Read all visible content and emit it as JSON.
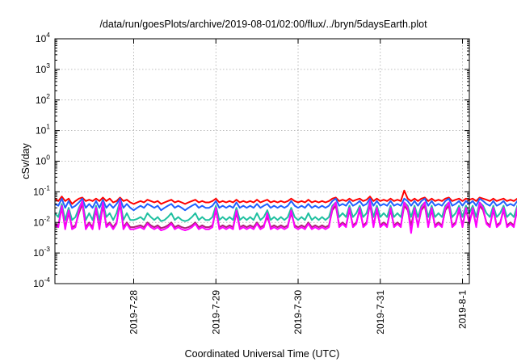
{
  "chart_data": {
    "type": "line",
    "title": "/data/run/goesPlots/archive/2019-08-01/02:00/flux/../bryn/5daysEarth.plot",
    "xlabel": "Coordinated Universal Time (UTC)",
    "ylabel": "cSv/day",
    "yscale": "log",
    "ylim": [
      0.0001,
      10000
    ],
    "y_ticks": [
      {
        "base": "10",
        "exp": "-4",
        "value": 0.0001
      },
      {
        "base": "10",
        "exp": "-3",
        "value": 0.001
      },
      {
        "base": "10",
        "exp": "-2",
        "value": 0.01
      },
      {
        "base": "10",
        "exp": "-1",
        "value": 0.1
      },
      {
        "base": "10",
        "exp": "0",
        "value": 1
      },
      {
        "base": "10",
        "exp": "1",
        "value": 10
      },
      {
        "base": "10",
        "exp": "2",
        "value": 100
      },
      {
        "base": "10",
        "exp": "3",
        "value": 1000
      },
      {
        "base": "10",
        "exp": "4",
        "value": 10000
      }
    ],
    "xlim": [
      "2019-07-27T01:00",
      "2019-08-01T02:00"
    ],
    "x_ticks": [
      {
        "label": "2019-7-28",
        "value": "2019-07-28T00:00"
      },
      {
        "label": "2019-7-29",
        "value": "2019-07-29T00:00"
      },
      {
        "label": "2019-7-30",
        "value": "2019-07-30T00:00"
      },
      {
        "label": "2019-7-31",
        "value": "2019-07-31T00:00"
      },
      {
        "label": "2019-8-1",
        "value": "2019-08-01T00:00"
      }
    ],
    "grid": true,
    "legend": "none",
    "x_start": "2019-07-27T01:00",
    "x_step_hours": 1,
    "series": [
      {
        "color": "#ff0000",
        "values": [
          0.06,
          0.05,
          0.07,
          0.05,
          0.06,
          0.04,
          0.05,
          0.06,
          0.065,
          0.05,
          0.055,
          0.05,
          0.06,
          0.05,
          0.065,
          0.05,
          0.06,
          0.045,
          0.05,
          0.065,
          0.05,
          0.055,
          0.045,
          0.04,
          0.045,
          0.05,
          0.045,
          0.055,
          0.05,
          0.045,
          0.05,
          0.04,
          0.045,
          0.05,
          0.055,
          0.045,
          0.05,
          0.045,
          0.04,
          0.045,
          0.05,
          0.055,
          0.045,
          0.05,
          0.045,
          0.045,
          0.05,
          0.06,
          0.045,
          0.05,
          0.045,
          0.05,
          0.045,
          0.055,
          0.045,
          0.05,
          0.045,
          0.05,
          0.045,
          0.055,
          0.045,
          0.05,
          0.055,
          0.045,
          0.05,
          0.045,
          0.05,
          0.045,
          0.05,
          0.06,
          0.05,
          0.045,
          0.05,
          0.045,
          0.055,
          0.045,
          0.05,
          0.045,
          0.05,
          0.045,
          0.05,
          0.06,
          0.065,
          0.05,
          0.055,
          0.05,
          0.06,
          0.05,
          0.055,
          0.06,
          0.05,
          0.055,
          0.07,
          0.05,
          0.06,
          0.05,
          0.055,
          0.05,
          0.06,
          0.05,
          0.055,
          0.05,
          0.11,
          0.06,
          0.05,
          0.06,
          0.05,
          0.06,
          0.065,
          0.05,
          0.06,
          0.05,
          0.055,
          0.05,
          0.06,
          0.065,
          0.05,
          0.055,
          0.06,
          0.05,
          0.06,
          0.055,
          0.06,
          0.05,
          0.065,
          0.06,
          0.055,
          0.05,
          0.06,
          0.05,
          0.055,
          0.06,
          0.05,
          0.055,
          0.05,
          0.06,
          0.05,
          0.045,
          0.05,
          0.045,
          0.05,
          0.045,
          0.05,
          0.045,
          0.05,
          0.045,
          0.05,
          0.045,
          0.05,
          0.045,
          0.05,
          0.045,
          0.05,
          0.045,
          0.05,
          0.045,
          0.05,
          0.045,
          0.05,
          0.045,
          0.05,
          0.045,
          0.05,
          0.045,
          0.05,
          0.055,
          0.06,
          0.07,
          0.08,
          0.06,
          0.07,
          0.065,
          0.075,
          0.06,
          0.07,
          0.06,
          0.075,
          0.065,
          0.06,
          0.07
        ]
      },
      {
        "color": "#2060ff",
        "values": [
          0.04,
          0.035,
          0.06,
          0.03,
          0.05,
          0.03,
          0.035,
          0.045,
          0.06,
          0.03,
          0.04,
          0.03,
          0.05,
          0.03,
          0.055,
          0.03,
          0.04,
          0.03,
          0.04,
          0.06,
          0.03,
          0.04,
          0.03,
          0.025,
          0.03,
          0.035,
          0.03,
          0.04,
          0.035,
          0.03,
          0.035,
          0.025,
          0.03,
          0.035,
          0.04,
          0.03,
          0.035,
          0.03,
          0.025,
          0.03,
          0.035,
          0.04,
          0.03,
          0.035,
          0.03,
          0.03,
          0.035,
          0.05,
          0.03,
          0.035,
          0.03,
          0.035,
          0.03,
          0.045,
          0.03,
          0.035,
          0.03,
          0.035,
          0.03,
          0.04,
          0.03,
          0.035,
          0.04,
          0.03,
          0.035,
          0.03,
          0.035,
          0.03,
          0.035,
          0.05,
          0.035,
          0.03,
          0.035,
          0.03,
          0.04,
          0.03,
          0.035,
          0.03,
          0.035,
          0.03,
          0.035,
          0.05,
          0.06,
          0.035,
          0.04,
          0.035,
          0.05,
          0.035,
          0.04,
          0.05,
          0.035,
          0.04,
          0.06,
          0.035,
          0.05,
          0.035,
          0.04,
          0.035,
          0.05,
          0.035,
          0.04,
          0.035,
          0.06,
          0.05,
          0.035,
          0.05,
          0.035,
          0.05,
          0.06,
          0.035,
          0.05,
          0.035,
          0.04,
          0.035,
          0.05,
          0.06,
          0.035,
          0.04,
          0.05,
          0.035,
          0.05,
          0.04,
          0.05,
          0.035,
          0.06,
          0.05,
          0.04,
          0.035,
          0.05,
          0.035,
          0.04,
          0.05,
          0.035,
          0.04,
          0.035,
          0.05,
          0.035,
          0.03,
          0.035,
          0.03,
          0.035,
          0.03,
          0.035,
          0.03,
          0.035,
          0.03,
          0.035,
          0.03,
          0.035,
          0.03,
          0.035,
          0.03,
          0.035,
          0.03,
          0.035,
          0.03,
          0.035,
          0.03,
          0.035,
          0.03,
          0.035,
          0.03,
          0.035,
          0.03,
          0.035,
          0.04,
          0.05,
          0.06,
          0.07,
          0.05,
          0.065,
          0.055,
          0.07,
          0.05,
          0.065,
          0.05,
          0.07,
          0.06,
          0.05,
          0.065
        ]
      },
      {
        "color": "#20c0a0",
        "values": [
          0.02,
          0.015,
          0.04,
          0.012,
          0.03,
          0.012,
          0.015,
          0.03,
          0.05,
          0.012,
          0.02,
          0.012,
          0.035,
          0.012,
          0.045,
          0.015,
          0.02,
          0.012,
          0.02,
          0.05,
          0.012,
          0.02,
          0.012,
          0.012,
          0.013,
          0.015,
          0.012,
          0.02,
          0.015,
          0.012,
          0.015,
          0.011,
          0.012,
          0.015,
          0.02,
          0.012,
          0.015,
          0.012,
          0.011,
          0.012,
          0.015,
          0.02,
          0.012,
          0.015,
          0.012,
          0.012,
          0.015,
          0.035,
          0.012,
          0.015,
          0.012,
          0.015,
          0.012,
          0.03,
          0.012,
          0.015,
          0.012,
          0.015,
          0.012,
          0.02,
          0.012,
          0.015,
          0.025,
          0.012,
          0.015,
          0.012,
          0.015,
          0.012,
          0.015,
          0.03,
          0.015,
          0.012,
          0.015,
          0.012,
          0.02,
          0.012,
          0.015,
          0.012,
          0.015,
          0.012,
          0.015,
          0.035,
          0.045,
          0.015,
          0.02,
          0.015,
          0.035,
          0.015,
          0.02,
          0.035,
          0.015,
          0.02,
          0.05,
          0.015,
          0.035,
          0.015,
          0.02,
          0.015,
          0.035,
          0.015,
          0.02,
          0.015,
          0.045,
          0.035,
          0.015,
          0.035,
          0.015,
          0.035,
          0.045,
          0.015,
          0.035,
          0.015,
          0.02,
          0.015,
          0.035,
          0.045,
          0.015,
          0.02,
          0.035,
          0.015,
          0.035,
          0.02,
          0.035,
          0.015,
          0.045,
          0.035,
          0.02,
          0.015,
          0.035,
          0.015,
          0.02,
          0.035,
          0.015,
          0.02,
          0.015,
          0.035,
          0.015,
          0.012,
          0.015,
          0.012,
          0.015,
          0.012,
          0.015,
          0.012,
          0.015,
          0.012,
          0.015,
          0.012,
          0.015,
          0.012,
          0.015,
          0.012,
          0.015,
          0.012,
          0.015,
          0.012,
          0.015,
          0.012,
          0.015,
          0.012,
          0.015,
          0.012,
          0.015,
          0.012,
          0.015,
          0.02,
          0.035,
          0.045,
          0.06,
          0.035,
          0.05,
          0.04,
          0.06,
          0.035,
          0.05,
          0.035,
          0.06,
          0.045,
          0.035,
          0.05
        ]
      },
      {
        "color": "#b0207a",
        "values": [
          0.009,
          0.008,
          0.03,
          0.007,
          0.02,
          0.007,
          0.008,
          0.02,
          0.04,
          0.007,
          0.01,
          0.007,
          0.025,
          0.007,
          0.035,
          0.008,
          0.01,
          0.007,
          0.01,
          0.04,
          0.007,
          0.01,
          0.007,
          0.007,
          0.0075,
          0.008,
          0.007,
          0.01,
          0.008,
          0.007,
          0.008,
          0.0065,
          0.007,
          0.008,
          0.01,
          0.007,
          0.008,
          0.007,
          0.0065,
          0.007,
          0.008,
          0.01,
          0.007,
          0.008,
          0.007,
          0.007,
          0.008,
          0.025,
          0.007,
          0.008,
          0.007,
          0.008,
          0.007,
          0.02,
          0.007,
          0.008,
          0.007,
          0.008,
          0.007,
          0.01,
          0.007,
          0.008,
          0.015,
          0.007,
          0.008,
          0.007,
          0.008,
          0.007,
          0.008,
          0.02,
          0.008,
          0.007,
          0.008,
          0.007,
          0.01,
          0.007,
          0.008,
          0.007,
          0.008,
          0.007,
          0.008,
          0.025,
          0.035,
          0.008,
          0.01,
          0.008,
          0.025,
          0.008,
          0.01,
          0.025,
          0.008,
          0.01,
          0.04,
          0.008,
          0.025,
          0.008,
          0.01,
          0.008,
          0.025,
          0.008,
          0.01,
          0.008,
          0.035,
          0.025,
          0.008,
          0.025,
          0.008,
          0.025,
          0.035,
          0.008,
          0.025,
          0.008,
          0.01,
          0.008,
          0.025,
          0.035,
          0.008,
          0.01,
          0.025,
          0.008,
          0.025,
          0.01,
          0.025,
          0.008,
          0.035,
          0.025,
          0.01,
          0.008,
          0.025,
          0.008,
          0.01,
          0.025,
          0.008,
          0.01,
          0.008,
          0.025,
          0.008,
          0.007,
          0.008,
          0.007,
          0.008,
          0.007,
          0.008,
          0.007,
          0.008,
          0.007,
          0.008,
          0.007,
          0.008,
          0.007,
          0.008,
          0.007,
          0.008,
          0.007,
          0.008,
          0.007,
          0.008,
          0.007,
          0.008,
          0.007,
          0.008,
          0.007,
          0.008,
          0.007,
          0.008,
          0.01,
          0.025,
          0.035,
          0.05,
          0.025,
          0.04,
          0.03,
          0.05,
          0.025,
          0.04,
          0.025,
          0.05,
          0.035,
          0.025,
          0.04
        ]
      },
      {
        "color": "#ff00ff",
        "values": [
          0.008,
          0.007,
          0.035,
          0.006,
          0.025,
          0.006,
          0.007,
          0.025,
          0.05,
          0.006,
          0.009,
          0.006,
          0.03,
          0.006,
          0.045,
          0.007,
          0.009,
          0.006,
          0.009,
          0.05,
          0.006,
          0.009,
          0.006,
          0.006,
          0.0065,
          0.007,
          0.006,
          0.009,
          0.007,
          0.006,
          0.007,
          0.0055,
          0.006,
          0.007,
          0.009,
          0.006,
          0.007,
          0.006,
          0.0055,
          0.006,
          0.007,
          0.009,
          0.006,
          0.007,
          0.006,
          0.006,
          0.007,
          0.03,
          0.006,
          0.007,
          0.006,
          0.007,
          0.006,
          0.025,
          0.006,
          0.007,
          0.006,
          0.007,
          0.006,
          0.009,
          0.006,
          0.007,
          0.02,
          0.006,
          0.007,
          0.006,
          0.007,
          0.006,
          0.007,
          0.025,
          0.007,
          0.006,
          0.007,
          0.006,
          0.009,
          0.006,
          0.007,
          0.006,
          0.007,
          0.006,
          0.007,
          0.03,
          0.045,
          0.007,
          0.009,
          0.007,
          0.03,
          0.007,
          0.009,
          0.03,
          0.007,
          0.009,
          0.05,
          0.007,
          0.03,
          0.007,
          0.009,
          0.007,
          0.03,
          0.007,
          0.009,
          0.007,
          0.045,
          0.03,
          0.0045,
          0.03,
          0.007,
          0.03,
          0.045,
          0.007,
          0.03,
          0.007,
          0.009,
          0.007,
          0.03,
          0.045,
          0.007,
          0.009,
          0.03,
          0.007,
          0.03,
          0.009,
          0.03,
          0.007,
          0.045,
          0.03,
          0.009,
          0.007,
          0.03,
          0.007,
          0.009,
          0.03,
          0.007,
          0.009,
          0.007,
          0.03,
          0.007,
          0.006,
          0.007,
          0.006,
          0.007,
          0.006,
          0.007,
          0.006,
          0.007,
          0.006,
          0.007,
          0.006,
          0.007,
          0.006,
          0.007,
          0.006,
          0.007,
          0.006,
          0.007,
          0.006,
          0.007,
          0.006,
          0.007,
          0.006,
          0.007,
          0.006,
          0.007,
          0.006,
          0.007,
          0.009,
          0.03,
          0.045,
          0.06,
          0.03,
          0.05,
          0.035,
          0.06,
          0.03,
          0.05,
          0.03,
          0.06,
          0.045,
          0.03,
          0.05
        ]
      }
    ]
  }
}
